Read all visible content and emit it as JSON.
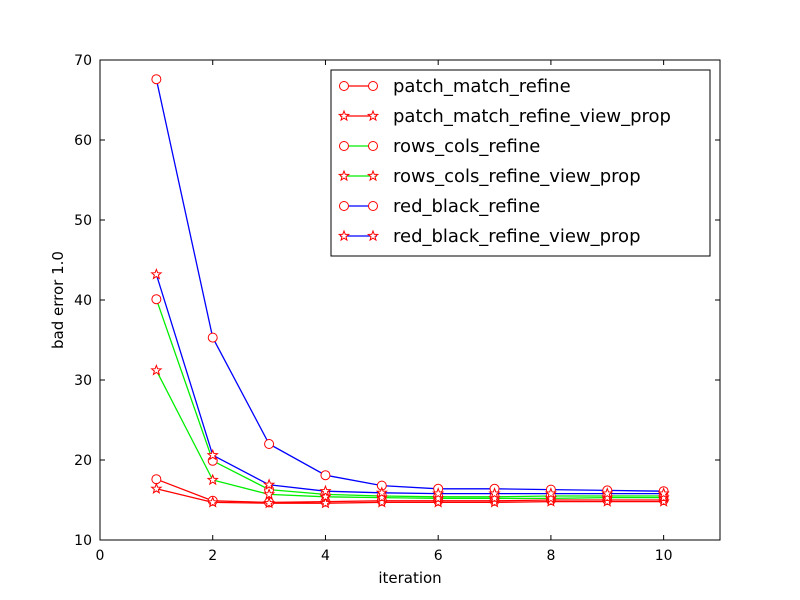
{
  "chart_data": {
    "type": "line",
    "xlabel": "iteration",
    "ylabel": "bad error 1.0",
    "xlim": [
      0,
      11
    ],
    "ylim": [
      10,
      70
    ],
    "xticks": [
      "0",
      "2",
      "4",
      "6",
      "8",
      "10"
    ],
    "yticks": [
      "10",
      "20",
      "30",
      "40",
      "50",
      "60",
      "70"
    ],
    "grid": false,
    "legend_position": "top-right",
    "x": [
      1,
      2,
      3,
      4,
      5,
      6,
      7,
      8,
      9,
      10
    ],
    "series": [
      {
        "name": "patch_match_refine",
        "color": "#ff0000",
        "marker": "circle",
        "values": [
          17.6,
          14.9,
          14.7,
          14.8,
          14.9,
          14.9,
          14.9,
          15.0,
          15.0,
          15.0
        ]
      },
      {
        "name": "patch_match_refine_view_prop",
        "color": "#ff0000",
        "marker": "star",
        "values": [
          16.4,
          14.7,
          14.6,
          14.6,
          14.7,
          14.7,
          14.7,
          14.8,
          14.8,
          14.8
        ]
      },
      {
        "name": "rows_cols_refine",
        "color": "#00ee00",
        "marker": "circle",
        "values": [
          40.1,
          19.9,
          16.3,
          15.7,
          15.5,
          15.4,
          15.4,
          15.5,
          15.5,
          15.5
        ]
      },
      {
        "name": "rows_cols_refine_view_prop",
        "color": "#00ee00",
        "marker": "star",
        "values": [
          31.2,
          17.5,
          15.7,
          15.4,
          15.3,
          15.2,
          15.2,
          15.2,
          15.3,
          15.3
        ]
      },
      {
        "name": "red_black_refine",
        "color": "#0000ff",
        "marker": "circle",
        "values": [
          67.6,
          35.3,
          22.0,
          18.1,
          16.8,
          16.4,
          16.4,
          16.3,
          16.2,
          16.1
        ]
      },
      {
        "name": "red_black_refine_view_prop",
        "color": "#0000ff",
        "marker": "star",
        "values": [
          43.2,
          20.6,
          16.9,
          16.1,
          15.9,
          15.8,
          15.8,
          15.8,
          15.8,
          15.8
        ]
      }
    ]
  }
}
